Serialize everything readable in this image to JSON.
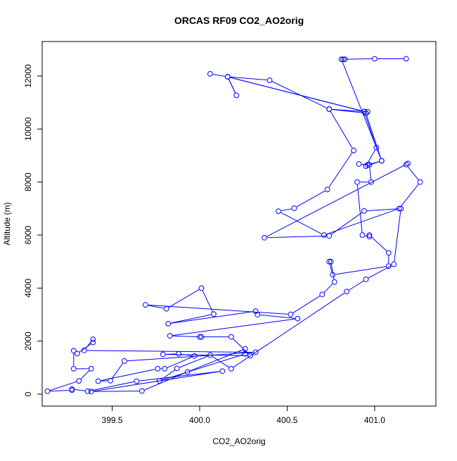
{
  "chart_data": {
    "type": "line",
    "title": "ORCAS RF09 CO2_AO2orig",
    "xlabel": "CO2_AO2orig",
    "ylabel": "Altitude (m)",
    "xlim": [
      399.1,
      401.35
    ],
    "ylim": [
      -450,
      13300
    ],
    "x_ticks": [
      399.5,
      400.0,
      400.5,
      401.0
    ],
    "x_tick_labels": [
      "399.5",
      "400.0",
      "400.5",
      "401.0"
    ],
    "y_ticks": [
      0,
      2000,
      4000,
      6000,
      8000,
      10000,
      12000
    ],
    "y_tick_labels": [
      "0",
      "2000",
      "4000",
      "6000",
      "8000",
      "10000",
      "12000"
    ],
    "grid": false,
    "color": "#0000ff",
    "marker": "open-circle",
    "series": [
      {
        "points": [
          [
            400.06,
            12080
          ],
          [
            400.16,
            11970
          ],
          [
            400.21,
            11270
          ],
          [
            400.16,
            11970
          ],
          [
            400.4,
            11840
          ],
          [
            400.74,
            10750
          ],
          [
            400.95,
            10600
          ],
          [
            400.94,
            10660
          ],
          [
            400.16,
            11970
          ],
          [
            400.94,
            10660
          ],
          [
            401.01,
            9300
          ],
          [
            400.95,
            8600
          ],
          [
            401.04,
            8800
          ],
          [
            400.96,
            8650
          ],
          [
            400.91,
            8680
          ],
          [
            400.97,
            8650
          ],
          [
            400.98,
            8000
          ],
          [
            400.9,
            8000
          ],
          [
            400.93,
            6000
          ],
          [
            400.97,
            5940
          ],
          [
            400.97,
            6000
          ],
          [
            401.08,
            5330
          ],
          [
            401.08,
            4830
          ],
          [
            400.76,
            4500
          ],
          [
            400.74,
            5000
          ],
          [
            400.75,
            5000
          ],
          [
            400.77,
            4230
          ],
          [
            400.7,
            3760
          ],
          [
            400.52,
            3010
          ],
          [
            399.69,
            3370
          ],
          [
            399.81,
            3220
          ],
          [
            400.01,
            4000
          ],
          [
            400.08,
            3020
          ],
          [
            399.82,
            2660
          ],
          [
            400.32,
            3130
          ],
          [
            400.33,
            3000
          ],
          [
            400.56,
            2850
          ],
          [
            399.83,
            2200
          ],
          [
            400.01,
            2160
          ],
          [
            400.0,
            2160
          ],
          [
            400.18,
            2160
          ],
          [
            400.29,
            1450
          ],
          [
            399.79,
            1500
          ],
          [
            399.88,
            1520
          ],
          [
            399.97,
            1440
          ],
          [
            399.8,
            960
          ],
          [
            399.76,
            960
          ],
          [
            399.42,
            490
          ],
          [
            399.49,
            510
          ],
          [
            399.57,
            1250
          ],
          [
            400.32,
            1580
          ],
          [
            399.34,
            1650
          ],
          [
            399.39,
            2070
          ],
          [
            399.39,
            1950
          ],
          [
            399.3,
            1530
          ],
          [
            399.28,
            1640
          ],
          [
            399.28,
            960
          ],
          [
            399.38,
            960
          ],
          [
            399.31,
            500
          ],
          [
            399.13,
            110
          ],
          [
            399.27,
            150
          ],
          [
            399.27,
            190
          ],
          [
            399.36,
            110
          ],
          [
            399.64,
            490
          ],
          [
            400.13,
            870
          ],
          [
            399.38,
            100
          ],
          [
            399.67,
            120
          ],
          [
            399.93,
            840
          ],
          [
            400.26,
            1710
          ],
          [
            400.26,
            1520
          ],
          [
            399.77,
            500
          ],
          [
            399.87,
            970
          ],
          [
            400.06,
            1470
          ],
          [
            400.18,
            960
          ],
          [
            400.84,
            3870
          ],
          [
            400.95,
            4330
          ],
          [
            401.11,
            4900
          ],
          [
            401.15,
            7000
          ],
          [
            400.94,
            6910
          ],
          [
            400.74,
            5970
          ],
          [
            400.37,
            5900
          ],
          [
            401.19,
            8700
          ],
          [
            401.18,
            8660
          ],
          [
            401.26,
            8000
          ],
          [
            401.14,
            7000
          ],
          [
            400.71,
            6000
          ],
          [
            400.45,
            6900
          ],
          [
            400.54,
            7010
          ],
          [
            400.73,
            7720
          ],
          [
            400.88,
            9190
          ],
          [
            400.74,
            10750
          ],
          [
            400.96,
            10650
          ],
          [
            400.95,
            10600
          ],
          [
            401.04,
            8800
          ],
          [
            400.81,
            12630
          ],
          [
            400.83,
            12630
          ],
          [
            400.82,
            12630
          ],
          [
            401.0,
            12650
          ],
          [
            401.18,
            12650
          ]
        ]
      }
    ]
  }
}
